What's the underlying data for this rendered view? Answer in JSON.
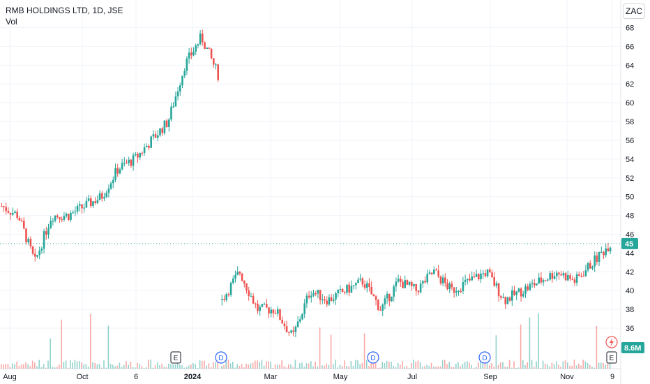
{
  "header": {
    "title": "RMB HOLDINGS LTD, 1D, JSE",
    "indicator": "Vol"
  },
  "currency_button": "ZAC",
  "colors": {
    "up": "#26a69a",
    "down": "#ef5350",
    "grid": "#f0f3fa",
    "axis_text": "#131722",
    "last_price_bg": "#26a69a",
    "volume_bg": "#26a69a"
  },
  "chart_data": {
    "type": "candlestick",
    "title": "RMB HOLDINGS LTD, 1D, JSE",
    "ylabel": "",
    "ylim": [
      33,
      70
    ],
    "y_ticks": [
      36,
      38,
      40,
      42,
      44,
      46,
      48,
      50,
      52,
      54,
      56,
      58,
      60,
      62,
      64,
      66,
      68
    ],
    "x_ticks": [
      "Aug",
      "Oct",
      "6",
      "2024",
      "Mar",
      "May",
      "Jul",
      "Sep",
      "Nov",
      "9"
    ],
    "last_price": "45",
    "last_volume": "8.6M",
    "grid": true,
    "event_markers": [
      {
        "label": "E",
        "type": "earnings"
      },
      {
        "label": "D",
        "type": "dividend"
      },
      {
        "label": "D",
        "type": "dividend"
      },
      {
        "label": "D",
        "type": "dividend"
      },
      {
        "label": "E",
        "type": "earnings"
      }
    ],
    "price_segments": [
      {
        "from": 49,
        "to": 48
      },
      {
        "from": 48,
        "to": 43
      },
      {
        "from": 43,
        "to": 48
      },
      {
        "from": 48,
        "to": 48
      },
      {
        "from": 48,
        "to": 49
      },
      {
        "from": 49,
        "to": 50
      },
      {
        "from": 50,
        "to": 53
      },
      {
        "from": 53,
        "to": 54
      },
      {
        "from": 54,
        "to": 56
      },
      {
        "from": 56,
        "to": 58
      },
      {
        "from": 58,
        "to": 64
      },
      {
        "from": 64,
        "to": 67
      },
      {
        "from": 67,
        "to": 63
      },
      {
        "from": 39,
        "to": 42
      },
      {
        "from": 42,
        "to": 38
      },
      {
        "from": 38,
        "to": 38
      },
      {
        "from": 38,
        "to": 35
      },
      {
        "from": 35,
        "to": 40
      },
      {
        "from": 40,
        "to": 39
      },
      {
        "from": 39,
        "to": 40
      },
      {
        "from": 40,
        "to": 41
      },
      {
        "from": 41,
        "to": 38
      },
      {
        "from": 38,
        "to": 41
      },
      {
        "from": 41,
        "to": 40
      },
      {
        "from": 40,
        "to": 42
      },
      {
        "from": 42,
        "to": 40
      },
      {
        "from": 40,
        "to": 41
      },
      {
        "from": 41,
        "to": 42
      },
      {
        "from": 42,
        "to": 39
      },
      {
        "from": 39,
        "to": 40
      },
      {
        "from": 40,
        "to": 41
      },
      {
        "from": 41,
        "to": 42
      },
      {
        "from": 42,
        "to": 41
      },
      {
        "from": 41,
        "to": 43
      },
      {
        "from": 43,
        "to": 45
      }
    ]
  }
}
